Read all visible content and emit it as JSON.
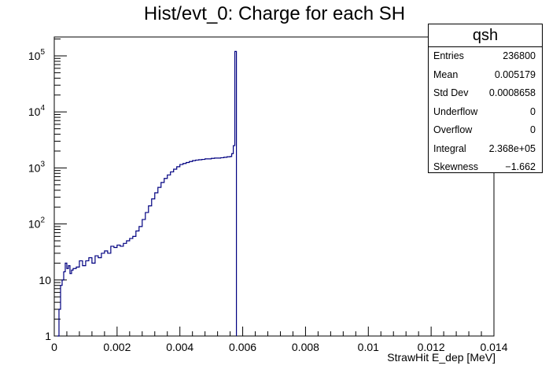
{
  "chart_data": {
    "type": "histogram",
    "title": "Hist/evt_0: Charge for each SH",
    "xlabel": "StrawHit E_dep [MeV]",
    "ylabel": "",
    "x_range": [
      0,
      0.014
    ],
    "y_range": [
      1,
      200000
    ],
    "y_scale": "log",
    "x_ticks": [
      "0",
      "0.002",
      "0.004",
      "0.006",
      "0.008",
      "0.01",
      "0.012",
      "0.014"
    ],
    "y_ticks": [
      {
        "value": 1,
        "label": "1"
      },
      {
        "value": 10,
        "label": "10"
      },
      {
        "value": 100,
        "label": "10^2"
      },
      {
        "value": 1000,
        "label": "10^3"
      },
      {
        "value": 10000,
        "label": "10^4"
      },
      {
        "value": 100000,
        "label": "10^5"
      }
    ],
    "line_color": "#000080",
    "series": [
      {
        "points": [
          [
            0.0001,
            1
          ],
          [
            0.00015,
            3
          ],
          [
            0.0002,
            8
          ],
          [
            0.00025,
            10
          ],
          [
            0.0003,
            14
          ],
          [
            0.00035,
            20
          ],
          [
            0.0004,
            16
          ],
          [
            0.00045,
            18
          ],
          [
            0.0005,
            13
          ],
          [
            0.00055,
            15
          ],
          [
            0.0006,
            16
          ],
          [
            0.0007,
            17
          ],
          [
            0.0008,
            22
          ],
          [
            0.0009,
            18
          ],
          [
            0.001,
            22
          ],
          [
            0.0011,
            25
          ],
          [
            0.0012,
            20
          ],
          [
            0.0013,
            27
          ],
          [
            0.0014,
            25
          ],
          [
            0.0015,
            30
          ],
          [
            0.0016,
            33
          ],
          [
            0.0017,
            30
          ],
          [
            0.0018,
            40
          ],
          [
            0.0019,
            38
          ],
          [
            0.002,
            42
          ],
          [
            0.0021,
            40
          ],
          [
            0.0022,
            45
          ],
          [
            0.0023,
            50
          ],
          [
            0.0024,
            55
          ],
          [
            0.0025,
            60
          ],
          [
            0.0026,
            75
          ],
          [
            0.0027,
            90
          ],
          [
            0.0028,
            120
          ],
          [
            0.0029,
            160
          ],
          [
            0.003,
            210
          ],
          [
            0.0031,
            280
          ],
          [
            0.0032,
            360
          ],
          [
            0.0033,
            450
          ],
          [
            0.0034,
            550
          ],
          [
            0.0035,
            650
          ],
          [
            0.0036,
            750
          ],
          [
            0.0037,
            850
          ],
          [
            0.0038,
            950
          ],
          [
            0.0039,
            1050
          ],
          [
            0.004,
            1150
          ],
          [
            0.0041,
            1200
          ],
          [
            0.0042,
            1250
          ],
          [
            0.0043,
            1300
          ],
          [
            0.0044,
            1350
          ],
          [
            0.0045,
            1380
          ],
          [
            0.0046,
            1400
          ],
          [
            0.0047,
            1420
          ],
          [
            0.0048,
            1450
          ],
          [
            0.0049,
            1450
          ],
          [
            0.005,
            1480
          ],
          [
            0.0051,
            1500
          ],
          [
            0.0052,
            1500
          ],
          [
            0.0053,
            1520
          ],
          [
            0.0054,
            1550
          ],
          [
            0.0055,
            1580
          ],
          [
            0.0056,
            1600
          ],
          [
            0.00565,
            1800
          ],
          [
            0.0057,
            2500
          ],
          [
            0.00575,
            120000
          ],
          [
            0.0058,
            1
          ]
        ]
      }
    ],
    "stats": {
      "name": "qsh",
      "rows": [
        {
          "key": "Entries",
          "value": "236800"
        },
        {
          "key": "Mean",
          "value": "0.005179"
        },
        {
          "key": "Std Dev",
          "value": "0.0008658"
        },
        {
          "key": "Underflow",
          "value": "0"
        },
        {
          "key": "Overflow",
          "value": "0"
        },
        {
          "key": "Integral",
          "value": "2.368e+05"
        },
        {
          "key": "Skewness",
          "value": "−1.662"
        }
      ]
    },
    "legend_position": "top-right",
    "grid": false
  }
}
